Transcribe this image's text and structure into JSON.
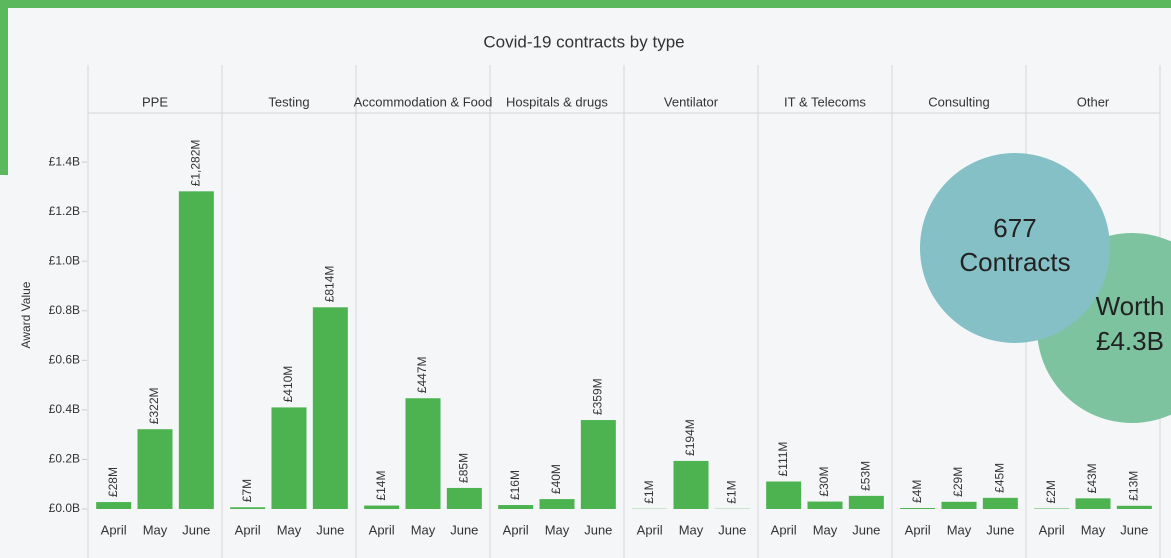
{
  "chart_data": {
    "type": "bar",
    "title": "Covid-19 contracts by type",
    "y_label": "Award Value",
    "categories": [
      "April",
      "May",
      "June"
    ],
    "color": "#4db351",
    "ylim": [
      0,
      1.59
    ],
    "yticks": [
      {
        "value": 0,
        "label": "£0.0B"
      },
      {
        "value": 0.2,
        "label": "£0.2B"
      },
      {
        "value": 0.4,
        "label": "£0.4B"
      },
      {
        "value": 0.6,
        "label": "£0.6B"
      },
      {
        "value": 0.8,
        "label": "£0.8B"
      },
      {
        "value": 1.0,
        "label": "£1.0B"
      },
      {
        "value": 1.2,
        "label": "£1.2B"
      },
      {
        "value": 1.4,
        "label": "£1.4B"
      }
    ],
    "panels": [
      {
        "title": "PPE",
        "values": [
          0.028,
          0.322,
          1.282
        ],
        "value_labels": [
          "£28M",
          "£322M",
          "£1,282M"
        ]
      },
      {
        "title": "Testing",
        "values": [
          0.007,
          0.41,
          0.814
        ],
        "value_labels": [
          "£7M",
          "£410M",
          "£814M"
        ]
      },
      {
        "title": "Accommodation & Food",
        "values": [
          0.014,
          0.447,
          0.085
        ],
        "value_labels": [
          "£14M",
          "£447M",
          "£85M"
        ]
      },
      {
        "title": "Hospitals & drugs",
        "values": [
          0.016,
          0.04,
          0.359
        ],
        "value_labels": [
          "£16M",
          "£40M",
          "£359M"
        ]
      },
      {
        "title": "Ventilator",
        "values": [
          0.001,
          0.194,
          0.001
        ],
        "value_labels": [
          "£1M",
          "£194M",
          "£1M"
        ]
      },
      {
        "title": "IT & Telecoms",
        "values": [
          0.111,
          0.03,
          0.053
        ],
        "value_labels": [
          "£111M",
          "£30M",
          "£53M"
        ]
      },
      {
        "title": "Consulting",
        "values": [
          0.004,
          0.029,
          0.045
        ],
        "value_labels": [
          "£4M",
          "£29M",
          "£45M"
        ]
      },
      {
        "title": "Other",
        "values": [
          0.002,
          0.043,
          0.013
        ],
        "value_labels": [
          "£2M",
          "£43M",
          "£13M"
        ]
      }
    ],
    "annotations": [
      "677",
      "Contracts",
      "Worth",
      "£4.3B"
    ]
  }
}
